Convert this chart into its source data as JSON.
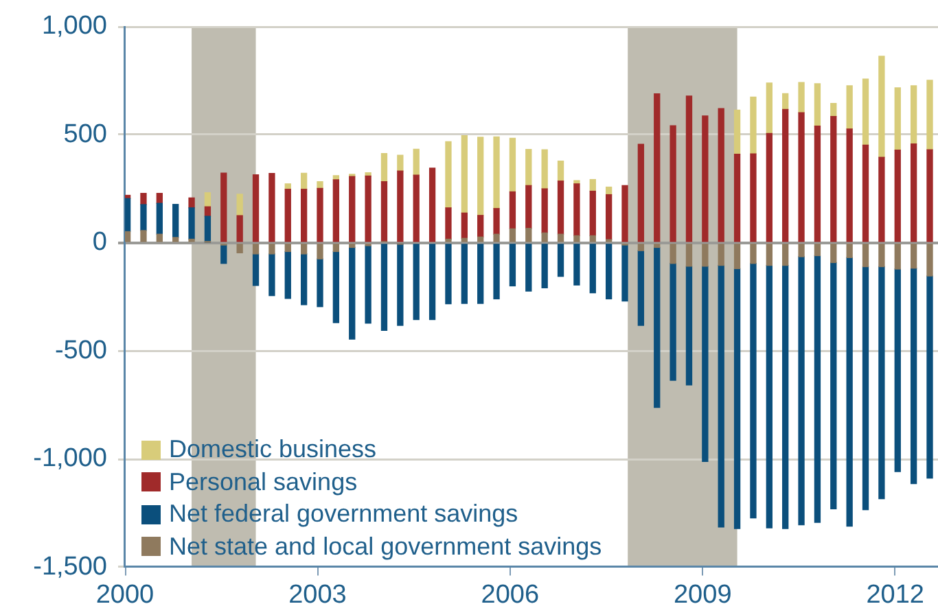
{
  "chart_data": {
    "type": "bar",
    "stacked": true,
    "legend": "bottom left",
    "grid": "y",
    "x": [
      "2000-01-15",
      "2000-04-15",
      "2000-07-15",
      "2000-10-15",
      "2001-01-15",
      "2001-04-15",
      "2001-07-15",
      "2001-10-15",
      "2002-01-15",
      "2002-04-15",
      "2002-07-15",
      "2002-10-15",
      "2003-01-15",
      "2003-04-15",
      "2003-07-15",
      "2003-10-15",
      "2004-01-15",
      "2004-04-15",
      "2004-07-15",
      "2004-10-15",
      "2005-01-15",
      "2005-04-15",
      "2005-07-15",
      "2005-10-15",
      "2006-01-15",
      "2006-04-15",
      "2006-07-15",
      "2006-10-15",
      "2007-01-15",
      "2007-04-15",
      "2007-07-15",
      "2007-10-15",
      "2008-01-15",
      "2008-04-15",
      "2008-07-15",
      "2008-10-15",
      "2009-01-15",
      "2009-04-15",
      "2009-07-15",
      "2009-10-15",
      "2010-01-15",
      "2010-04-15",
      "2010-07-15",
      "2010-10-15",
      "2011-01-15",
      "2011-04-15",
      "2011-07-15",
      "2011-10-15",
      "2012-01-15",
      "2012-04-15",
      "2012-07-15"
    ],
    "xlim": [
      "2000",
      "2012-09"
    ],
    "xticks": [
      "2000",
      "2003",
      "2006",
      "2009",
      "2012"
    ],
    "ylim": [
      -1500,
      1000
    ],
    "yticks": [
      {
        "value": -1500,
        "label": "-1,500"
      },
      {
        "value": -1000,
        "label": "-1,000"
      },
      -500,
      0,
      500,
      {
        "value": 1000,
        "label": "1,000"
      }
    ],
    "series": [
      {
        "name": "Net state and local government savings",
        "color": "#8f7a5e",
        "values": [
          52,
          57,
          40,
          25,
          17,
          3,
          -10,
          -46,
          -51,
          -51,
          -40,
          -51,
          -74,
          -40,
          -21,
          -13,
          6,
          -5,
          null,
          null,
          17,
          21,
          27,
          40,
          65,
          67,
          46,
          40,
          33,
          33,
          15,
          -10,
          -36,
          -21,
          -95,
          -108,
          -108,
          -104,
          -119,
          -95,
          -104,
          -104,
          -64,
          -59,
          -91,
          -68,
          -110,
          -110,
          -121,
          -117,
          -153
        ]
      },
      {
        "name": "Net federal government savings",
        "color": "#0b4f7c",
        "values": [
          153,
          120,
          143,
          153,
          145,
          120,
          -85,
          null,
          -146,
          -193,
          -217,
          -235,
          -221,
          -329,
          -424,
          -358,
          -405,
          -377,
          -355,
          -355,
          -282,
          -280,
          -280,
          -259,
          -199,
          -223,
          -208,
          -155,
          -195,
          -231,
          -259,
          -259,
          -346,
          -740,
          -541,
          -549,
          -903,
          -1210,
          -1202,
          -1177,
          -1214,
          -1217,
          -1240,
          -1234,
          -1139,
          -1242,
          -1124,
          -1073,
          -937,
          -996,
          -935
        ]
      },
      {
        "name": "Personal savings",
        "color": "#a02a2a",
        "values": [
          15,
          52,
          46,
          null,
          46,
          44,
          323,
          126,
          315,
          321,
          248,
          248,
          252,
          292,
          307,
          309,
          277,
          332,
          313,
          346,
          145,
          117,
          100,
          119,
          171,
          198,
          204,
          246,
          240,
          206,
          208,
          265,
          456,
          689,
          542,
          679,
          587,
          621,
          410,
          412,
          506,
          617,
          602,
          540,
          585,
          527,
          452,
          396,
          429,
          458,
          431
        ]
      },
      {
        "name": "Domestic business",
        "color": "#d8cc7a",
        "values": [
          null,
          null,
          null,
          null,
          null,
          65,
          null,
          99,
          null,
          null,
          25,
          74,
          31,
          19,
          10,
          15,
          130,
          73,
          120,
          null,
          306,
          358,
          362,
          331,
          248,
          167,
          181,
          92,
          15,
          54,
          35,
          null,
          null,
          null,
          null,
          null,
          null,
          null,
          204,
          262,
          233,
          73,
          140,
          196,
          60,
          200,
          306,
          467,
          288,
          269,
          321
        ]
      }
    ],
    "bands": [
      {
        "axis": "x",
        "from": "2001-01-15",
        "to": "2002-01-15",
        "color": "#bfbcb0"
      },
      {
        "axis": "x",
        "from": "2007-11-01",
        "to": "2009-07-15",
        "color": "#bfbcb0"
      }
    ]
  }
}
